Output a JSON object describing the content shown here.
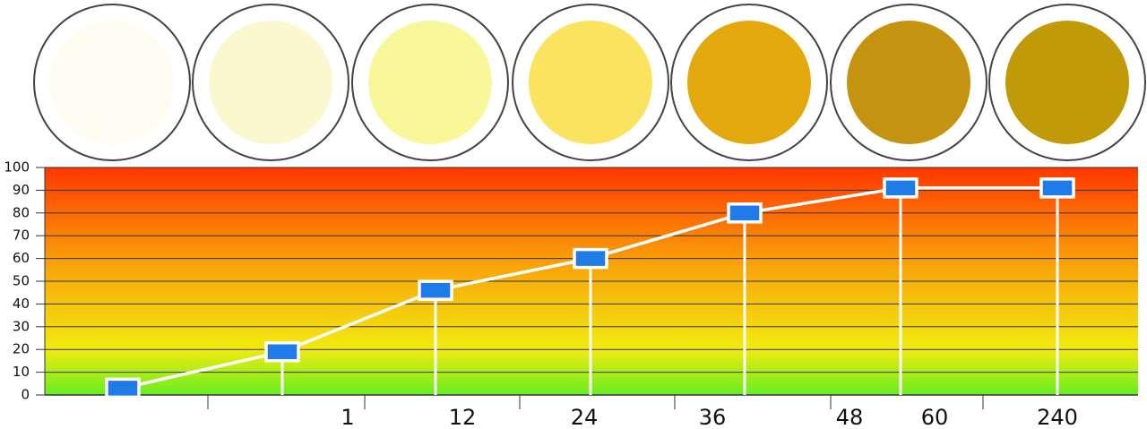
{
  "chart_data": {
    "type": "line",
    "swatches": [
      "#fefcf0",
      "#fbf8d0",
      "#f8f79a",
      "#f9e35f",
      "#e3a90c",
      "#c4930f",
      "#c19b07"
    ],
    "series": [
      {
        "color": "#1e7be8",
        "values": [
          3,
          19,
          46,
          60,
          80,
          91,
          91
        ]
      }
    ],
    "x_labels": [
      "1",
      "12",
      "24",
      "36",
      "48",
      "60",
      "240"
    ],
    "ylim": [
      0,
      100
    ],
    "yticks": [
      0,
      10,
      20,
      30,
      40,
      50,
      60,
      70,
      80,
      90,
      100
    ],
    "grid": true
  }
}
